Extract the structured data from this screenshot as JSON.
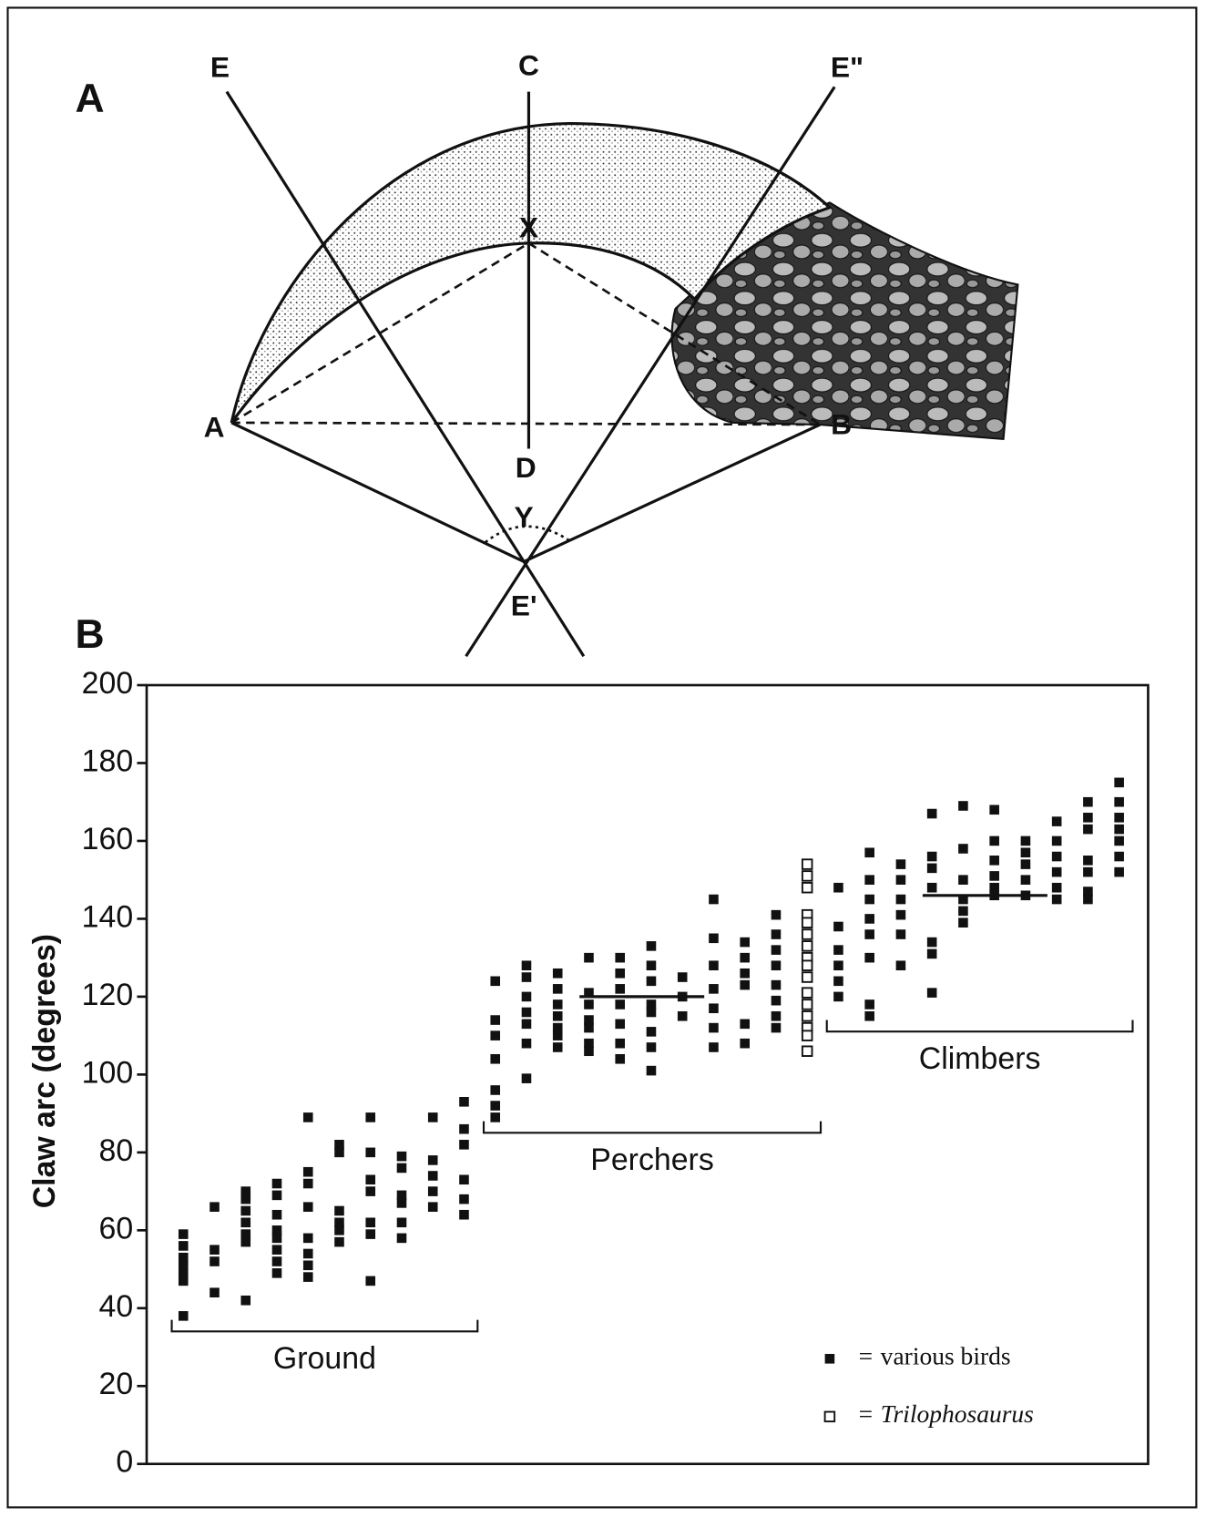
{
  "panel_a": {
    "label": "A",
    "points": {
      "A": "A",
      "B": "B",
      "C": "C",
      "D": "D",
      "E": "E",
      "E_prime": "E'",
      "E_double_prime": "E\"",
      "X": "X",
      "Y": "Y"
    }
  },
  "chart_data": {
    "type": "scatter",
    "panel_label": "B",
    "ylabel": "Claw arc (degrees)",
    "categories": [
      null,
      null,
      null,
      null,
      null,
      null,
      null,
      null,
      null,
      null,
      null,
      null,
      null,
      null,
      null,
      null,
      null,
      null,
      null,
      null,
      null,
      null,
      null,
      null,
      null,
      null,
      null,
      null,
      null,
      null,
      null
    ],
    "ylim": [
      0,
      200
    ],
    "yticks": [
      0,
      20,
      40,
      60,
      80,
      100,
      120,
      140,
      160,
      180,
      200
    ],
    "legend": "lower right",
    "legend_sign": "=",
    "series": [
      {
        "name": "various birds",
        "marker": "filled",
        "color": "#111111",
        "values": [
          [
            59,
            56,
            53,
            51,
            49,
            47,
            38
          ],
          [
            66,
            55,
            52,
            44
          ],
          [
            70,
            68,
            65,
            62,
            59,
            57,
            42
          ],
          [
            72,
            69,
            64,
            60,
            58,
            55,
            52,
            49
          ],
          [
            89,
            75,
            72,
            66,
            58,
            54,
            51,
            48
          ],
          [
            82,
            80,
            65,
            62,
            60,
            57
          ],
          [
            89,
            80,
            73,
            70,
            62,
            59,
            47
          ],
          [
            79,
            76,
            69,
            67,
            62,
            58
          ],
          [
            89,
            78,
            74,
            70,
            66
          ],
          [
            93,
            86,
            82,
            73,
            68,
            64
          ],
          [
            124,
            114,
            110,
            104,
            96,
            92,
            89
          ],
          [
            128,
            125,
            120,
            116,
            113,
            108,
            99
          ],
          [
            126,
            122,
            118,
            115,
            112,
            110,
            107
          ],
          [
            130,
            121,
            118,
            114,
            112,
            108,
            106
          ],
          [
            130,
            126,
            122,
            118,
            113,
            108,
            104
          ],
          [
            133,
            128,
            124,
            118,
            116,
            111,
            107,
            101
          ],
          [
            125,
            120,
            115
          ],
          [
            145,
            135,
            128,
            122,
            117,
            112,
            107
          ],
          [
            134,
            130,
            126,
            123,
            113,
            108
          ],
          [
            141,
            136,
            132,
            128,
            123,
            119,
            115,
            112
          ],
          null,
          [
            148,
            138,
            132,
            128,
            124,
            120
          ],
          [
            157,
            150,
            145,
            140,
            136,
            130,
            118,
            115
          ],
          [
            154,
            150,
            145,
            141,
            136,
            128
          ],
          [
            167,
            156,
            153,
            148,
            134,
            131,
            121
          ],
          [
            169,
            158,
            150,
            145,
            142,
            139
          ],
          [
            168,
            160,
            155,
            151,
            148,
            146
          ],
          [
            160,
            157,
            154,
            150,
            146
          ],
          [
            165,
            160,
            156,
            152,
            148,
            145
          ],
          [
            170,
            166,
            163,
            155,
            152,
            147,
            145
          ],
          [
            175,
            170,
            166,
            163,
            160,
            156,
            152
          ]
        ]
      },
      {
        "name": "Trilophosaurus",
        "marker": "open",
        "color": "#111111",
        "values": [
          null,
          null,
          null,
          null,
          null,
          null,
          null,
          null,
          null,
          null,
          null,
          null,
          null,
          null,
          null,
          null,
          null,
          null,
          null,
          null,
          [
            154,
            151,
            148,
            141,
            139,
            136,
            133,
            130,
            128,
            125,
            121,
            118,
            115,
            112,
            110,
            106
          ],
          null,
          null,
          null,
          null,
          null,
          null,
          null,
          null,
          null,
          null
        ]
      }
    ],
    "groups": [
      {
        "label": "Ground",
        "columns": 10
      },
      {
        "label": "Perchers",
        "columns": 11,
        "mean": 120
      },
      {
        "label": "Climbers",
        "columns": 10,
        "mean": 146
      }
    ]
  }
}
